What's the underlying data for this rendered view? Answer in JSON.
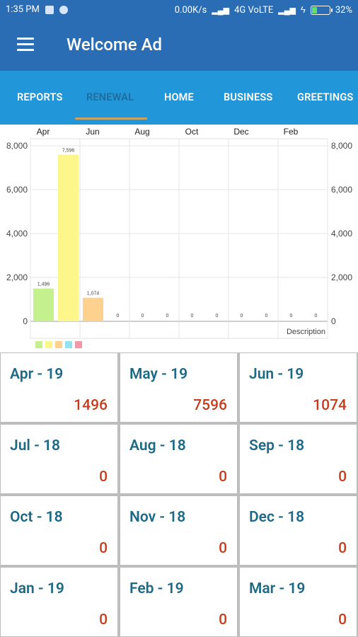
{
  "status": {
    "time": "1:35 PM",
    "speed": "0.00K/s",
    "network": "4G VoLTE",
    "battery": "32%",
    "battery_level": 0.32
  },
  "appbar": {
    "title": "Welcome Ad"
  },
  "tabs": [
    {
      "label": "REPORTS",
      "active": false
    },
    {
      "label": "RENEWAL",
      "active": true
    },
    {
      "label": "HOME",
      "active": false
    },
    {
      "label": "BUSINESS",
      "active": false
    },
    {
      "label": "GREETINGS",
      "active": false
    }
  ],
  "chart_data": {
    "type": "bar",
    "categories": [
      "Apr",
      "May",
      "Jun",
      "Jul",
      "Aug",
      "Sep",
      "Oct",
      "Nov",
      "Dec",
      "Jan",
      "Feb",
      "Mar"
    ],
    "x_top_labels": [
      "Apr",
      "Jun",
      "Aug",
      "Oct",
      "Dec",
      "Feb"
    ],
    "values": [
      1496,
      7596,
      1074,
      0,
      0,
      0,
      0,
      0,
      0,
      0,
      0,
      0
    ],
    "value_labels": [
      "1,496",
      "7,596",
      "1,074",
      "0",
      "0",
      "0",
      "0",
      "0",
      "0",
      "0",
      "0",
      "0"
    ],
    "y_ticks": [
      "0",
      "2,000",
      "4,000",
      "6,000",
      "8,000"
    ],
    "ylim": [
      0,
      8000
    ],
    "description": "Description",
    "bar_colors": [
      "#c5f08e",
      "#fdf68b",
      "#fdd18e",
      "#92e3f0",
      "#f597ab"
    ],
    "legend_colors": [
      "#c5f08e",
      "#fdf68b",
      "#fdd18e",
      "#92e3f0",
      "#f597ab"
    ],
    "grid": true
  },
  "tiles": [
    {
      "month": "Apr - 19",
      "value": "1496"
    },
    {
      "month": "May - 19",
      "value": "7596"
    },
    {
      "month": "Jun - 19",
      "value": "1074"
    },
    {
      "month": "Jul - 18",
      "value": "0"
    },
    {
      "month": "Aug - 18",
      "value": "0"
    },
    {
      "month": "Sep - 18",
      "value": "0"
    },
    {
      "month": "Oct - 18",
      "value": "0"
    },
    {
      "month": "Nov - 18",
      "value": "0"
    },
    {
      "month": "Dec - 18",
      "value": "0"
    },
    {
      "month": "Jan - 19",
      "value": "0"
    },
    {
      "month": "Feb - 19",
      "value": "0"
    },
    {
      "month": "Mar - 19",
      "value": "0"
    }
  ]
}
